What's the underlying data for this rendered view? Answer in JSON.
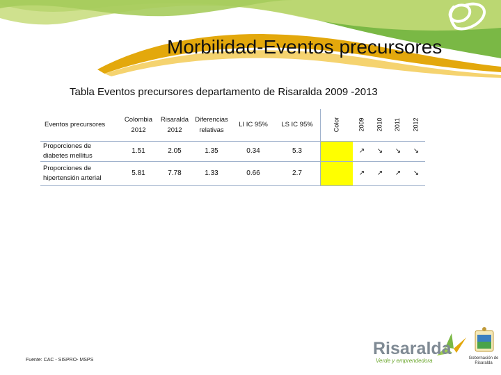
{
  "title": "Morbilidad-Eventos precursores",
  "subtitle": "Tabla  Eventos precursores departamento de Risaralda 2009 -2013",
  "table": {
    "headers": {
      "event": "Eventos precursores",
      "colombia": "Colombia",
      "colombia_year": "2012",
      "risaralda": "Risaralda",
      "risaralda_year": "2012",
      "diff": "Diferencias",
      "diff2": "relativas",
      "li": "LI IC 95%",
      "ls": "LS IC 95%",
      "color": "Color",
      "y2009": "2009",
      "y2010": "2010",
      "y2011": "2011",
      "y2012": "2012"
    },
    "rows": [
      {
        "label1": "Proporciones de",
        "label2": "diabetes mellitus",
        "colombia": "1.51",
        "risaralda": "2.05",
        "diff": "1.35",
        "li": "0.34",
        "ls": "5.3",
        "color": "#ffff00",
        "trend": [
          "↗",
          "↘",
          "↘",
          "↘"
        ]
      },
      {
        "label1": "Proporciones de",
        "label2": "hipertensión arterial",
        "colombia": "5.81",
        "risaralda": "7.78",
        "diff": "1.33",
        "li": "0.66",
        "ls": "2.7",
        "color": "#ffff00",
        "trend": [
          "↗",
          "↗",
          "↗",
          "↘"
        ]
      }
    ]
  },
  "source": "Fuente: CAC - SISPRO- MSPS",
  "logo": {
    "name": "Risaralda",
    "tagline": "Verde y emprendedora"
  },
  "gob": {
    "line1": "Gobernación de",
    "line2": "Risaralda"
  },
  "colors": {
    "green": "#7ab845",
    "light_green": "#c7dc7a",
    "gold": "#e3a80c",
    "yellow_cell": "#ffff00",
    "grid": "#9fb1cc"
  }
}
